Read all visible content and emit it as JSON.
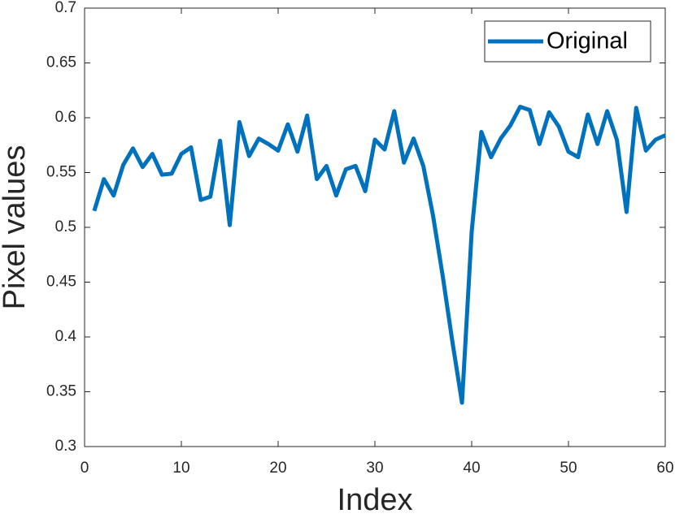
{
  "chart_data": {
    "type": "line",
    "xlabel": "Index",
    "ylabel": "Pixel values",
    "x": [
      1,
      2,
      3,
      4,
      5,
      6,
      7,
      8,
      9,
      10,
      11,
      12,
      13,
      14,
      15,
      16,
      17,
      18,
      19,
      20,
      21,
      22,
      23,
      24,
      25,
      26,
      27,
      28,
      29,
      30,
      31,
      32,
      33,
      34,
      35,
      36,
      37,
      38,
      39,
      40,
      41,
      42,
      43,
      44,
      45,
      46,
      47,
      48,
      49,
      50,
      51,
      52,
      53,
      54,
      55,
      56,
      57,
      58,
      59,
      60
    ],
    "series": [
      {
        "name": "Original",
        "color": "#0072bd",
        "values": [
          0.515,
          0.544,
          0.529,
          0.557,
          0.572,
          0.555,
          0.567,
          0.548,
          0.549,
          0.567,
          0.573,
          0.525,
          0.528,
          0.579,
          0.502,
          0.596,
          0.565,
          0.581,
          0.576,
          0.57,
          0.594,
          0.569,
          0.602,
          0.544,
          0.556,
          0.529,
          0.553,
          0.556,
          0.533,
          0.58,
          0.571,
          0.606,
          0.559,
          0.581,
          0.556,
          0.511,
          0.456,
          0.396,
          0.34,
          0.496,
          0.587,
          0.564,
          0.581,
          0.593,
          0.61,
          0.607,
          0.576,
          0.605,
          0.592,
          0.569,
          0.564,
          0.603,
          0.576,
          0.606,
          0.58,
          0.514,
          0.609,
          0.57,
          0.58,
          0.584
        ]
      }
    ],
    "xlim": [
      0,
      60
    ],
    "xticks": [
      0,
      10,
      20,
      30,
      40,
      50,
      60
    ],
    "ylim": [
      0.3,
      0.7
    ],
    "yticks": [
      0.3,
      0.35,
      0.4,
      0.45,
      0.5,
      0.55,
      0.6,
      0.65,
      0.7
    ],
    "legend": "northeast",
    "grid": false
  }
}
